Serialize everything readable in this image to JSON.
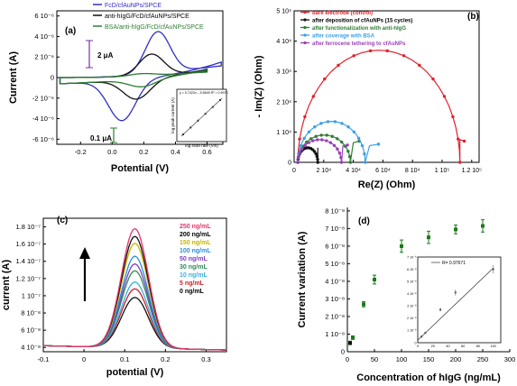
{
  "chart_data": [
    {
      "id": "a",
      "type": "line",
      "panel_label": "(a)",
      "xlabel": "Potential (V)",
      "ylabel": "Current (A)",
      "xlim": [
        -0.35,
        0.7
      ],
      "ylim": [
        -6.5e-06,
        6.5e-06
      ],
      "xticks": [
        -0.2,
        0,
        0.2,
        0.4,
        0.6
      ],
      "xtick_labels": [
        "-0.2",
        "0.0",
        "0.2",
        "0.4",
        "0.6"
      ],
      "yticks": [
        6e-06,
        4e-06,
        2e-06,
        0,
        -2e-06,
        -4e-06,
        -6e-06
      ],
      "ytick_labels": [
        "6 10⁻⁶",
        "4 10⁻⁶",
        "2 10⁻⁶",
        "0",
        "-2 10⁻⁶",
        "-4 10⁻⁶",
        "-6 10⁻⁶"
      ],
      "legend_position": "top-center",
      "series": [
        {
          "name": "FcD/cfAuNPs/SPCE",
          "color": "#2f2fc8",
          "anodic_peak": [
            0.29,
            4.7e-06
          ],
          "cathodic_peak": [
            0.06,
            -4.2e-06
          ],
          "start": [
            -0.33,
            0.0
          ],
          "end": [
            0.69,
            1.5e-06
          ]
        },
        {
          "name": "anti-hIgG/FcD/cfAuNPs/SPCE",
          "color": "#111111",
          "anodic_peak": [
            0.25,
            2.4e-06
          ],
          "cathodic_peak": [
            0.15,
            -2.1e-06
          ],
          "start": [
            -0.33,
            0.0
          ],
          "end": [
            0.6,
            8e-07
          ]
        },
        {
          "name": "BSA/anti-hIgG/FcD/cfAuNPs/SPCE",
          "color": "#2e7d32",
          "anodic_peak": [
            0.2,
            4e-07
          ],
          "cathodic_peak": [
            0.18,
            -9e-07
          ],
          "start": [
            -0.33,
            0.0
          ],
          "end": [
            0.6,
            7e-07
          ]
        }
      ],
      "annotations": [
        "2 μA",
        "0.1 μA"
      ],
      "inset": {
        "xlabel": "log scan rate (V/s)",
        "ylabel": "log peak current (A)",
        "equation": "y = 0.7422x – 5.5645 R² = 0.9970",
        "fit": "linear"
      }
    },
    {
      "id": "b",
      "type": "scatter",
      "panel_label": "(b)",
      "xlabel": "Re(Z) (Ohm)",
      "ylabel": "- Im(Z) (Ohm)",
      "xlim": [
        0,
        125000
      ],
      "ylim": [
        0,
        50000
      ],
      "xticks": [
        0,
        20000,
        40000,
        60000,
        80000,
        100000,
        120000
      ],
      "xtick_labels": [
        "0",
        "2 10⁴",
        "4 10⁴",
        "6 10⁴",
        "8 10⁴",
        "1 10⁵",
        "1.2 10⁵"
      ],
      "yticks": [
        0,
        10000,
        20000,
        30000,
        40000,
        50000
      ],
      "ytick_labels": [
        "0",
        "1 10⁴",
        "2 10⁴",
        "3 10⁴",
        "4 10⁴",
        "5 10⁴"
      ],
      "legend_position": "top",
      "series": [
        {
          "name": "bare electrode (control)",
          "color": "#e0202a",
          "arc_start": 2500,
          "arc_end": 112000,
          "peak": 37000,
          "tail": [
            [
              112000,
              7500
            ],
            [
              115000,
              7000
            ]
          ]
        },
        {
          "name": "after deposition of cfAuNPs (15 cycles)",
          "color": "#111111",
          "arc_start": 2500,
          "arc_end": 16000,
          "peak": 4800,
          "tail": [
            [
              16000,
              4800
            ]
          ]
        },
        {
          "name": "after functionalization with anti-hIgG",
          "color": "#2e7d32",
          "arc_start": 2500,
          "arc_end": 38000,
          "peak": 9000,
          "tail": [
            [
              40000,
              6500
            ],
            [
              44000,
              7000
            ]
          ]
        },
        {
          "name": "after coverage with BSA",
          "color": "#3aa0e8",
          "arc_start": 2500,
          "arc_end": 48000,
          "peak": 13500,
          "tail": [
            [
              51000,
              5500
            ],
            [
              57000,
              6000
            ]
          ]
        },
        {
          "name": "after ferrocene tethering to cfAuNPs",
          "color": "#9a3fb8",
          "arc_start": 2500,
          "arc_end": 32000,
          "peak": 7500,
          "tail": [
            [
              33000,
              5500
            ],
            [
              36000,
              5700
            ]
          ]
        }
      ]
    },
    {
      "id": "c",
      "type": "line",
      "panel_label": "(c)",
      "xlabel": "potential (V)",
      "ylabel": "current (A)",
      "xlim": [
        -0.1,
        0.35
      ],
      "ylim": [
        3.5e-08,
        1.9e-07
      ],
      "xticks": [
        -0.1,
        0,
        0.1,
        0.2,
        0.3
      ],
      "xtick_labels": [
        "-0.1",
        "0",
        "0.1",
        "0.2",
        "0.3"
      ],
      "yticks": [
        4e-08,
        6e-08,
        8e-08,
        1e-07,
        1.2e-07,
        1.4e-07,
        1.6e-07,
        1.8e-07
      ],
      "ytick_labels": [
        "4 10⁻⁸",
        "6 10⁻⁸",
        "8 10⁻⁸",
        "1 10⁻⁷",
        "1.2 10⁻⁷",
        "1.4 10⁻⁷",
        "1.6 10⁻⁷",
        "1.8 10⁻⁷"
      ],
      "peak_potential": 0.125,
      "peak_width": 0.047,
      "series": [
        {
          "name": "250 ng/mL",
          "color": "#e8336d",
          "peak_current": 1.78e-07,
          "baseline_left": 4.2e-08,
          "baseline_right": 3.7e-08
        },
        {
          "name": "200 ng/mL",
          "color": "#111111",
          "peak_current": 1.69e-07,
          "baseline_left": 4.2e-08,
          "baseline_right": 3.7e-08
        },
        {
          "name": "150 ng/mL",
          "color": "#c8b400",
          "peak_current": 1.61e-07,
          "baseline_left": 4.2e-08,
          "baseline_right": 3.7e-08
        },
        {
          "name": "100 ng/mL",
          "color": "#2a8fd8",
          "peak_current": 1.46e-07,
          "baseline_left": 4.2e-08,
          "baseline_right": 3.7e-08
        },
        {
          "name": "50 ng/mL",
          "color": "#7b3fc0",
          "peak_current": 1.37e-07,
          "baseline_left": 4.2e-08,
          "baseline_right": 3.7e-08
        },
        {
          "name": "30 ng/mL",
          "color": "#2e8b57",
          "peak_current": 1.29e-07,
          "baseline_left": 4.2e-08,
          "baseline_right": 3.7e-08
        },
        {
          "name": "10 ng/mL",
          "color": "#3ab0e0",
          "peak_current": 1.16e-07,
          "baseline_left": 4.2e-08,
          "baseline_right": 3.7e-08
        },
        {
          "name": "5 ng/mL",
          "color": "#d0202a",
          "peak_current": 1.08e-07,
          "baseline_left": 4.2e-08,
          "baseline_right": 3.7e-08
        },
        {
          "name": "0 ng/mL",
          "color": "#111111",
          "peak_current": 9.8e-08,
          "baseline_left": 4.2e-08,
          "baseline_right": 3.7e-08
        }
      ]
    },
    {
      "id": "d",
      "type": "scatter",
      "panel_label": "(d)",
      "xlabel": "Concentration of hIgG (ng/mL)",
      "ylabel": "Current variation (A)",
      "xlim": [
        0,
        300
      ],
      "ylim": [
        0,
        8.2e-08
      ],
      "xticks": [
        0,
        50,
        100,
        150,
        200,
        250,
        300
      ],
      "xtick_labels": [
        "0",
        "50",
        "100",
        "150",
        "200",
        "250",
        "300"
      ],
      "yticks": [
        0,
        1e-08,
        2e-08,
        3e-08,
        4e-08,
        5e-08,
        6e-08,
        7e-08,
        8e-08
      ],
      "ytick_labels": [
        "0",
        "1 10⁻⁸",
        "2 10⁻⁸",
        "3 10⁻⁸",
        "4 10⁻⁸",
        "5 10⁻⁸",
        "6 10⁻⁸",
        "7 10⁻⁸",
        "8 10⁻⁸"
      ],
      "marker_color": "#1a7a1a",
      "points": [
        {
          "x": 5,
          "y": 5e-09,
          "err": 1e-09
        },
        {
          "x": 10,
          "y": 8e-09,
          "err": 1e-09
        },
        {
          "x": 30,
          "y": 2.7e-08,
          "err": 1.5e-09
        },
        {
          "x": 50,
          "y": 4.1e-08,
          "err": 2.5e-09
        },
        {
          "x": 100,
          "y": 6e-08,
          "err": 3.5e-09
        },
        {
          "x": 150,
          "y": 6.5e-08,
          "err": 3.5e-09
        },
        {
          "x": 200,
          "y": 6.95e-08,
          "err": 2.5e-09
        },
        {
          "x": 250,
          "y": 7.15e-08,
          "err": 3.5e-09
        }
      ],
      "inset": {
        "xlim": [
          0,
          110
        ],
        "ylim": [
          0,
          7e-08
        ],
        "xticks": [
          0,
          20,
          40,
          60,
          80,
          100
        ],
        "xtick_labels": [
          "0",
          "20",
          "40",
          "60",
          "80",
          "100"
        ],
        "yticks": [
          0,
          1e-08,
          2e-08,
          3e-08,
          4e-08,
          5e-08,
          6e-08,
          7e-08
        ],
        "ytick_labels": [
          "0",
          "1 10⁻⁸",
          "2 10⁻⁸",
          "3 10⁻⁸",
          "4 10⁻⁸",
          "5 10⁻⁸",
          "6 10⁻⁸",
          "7 10⁻⁸"
        ],
        "legend": "R= 0.97671",
        "fit_line": [
          [
            0,
            2e-09
          ],
          [
            100,
            6.1e-08
          ]
        ],
        "points": [
          {
            "x": 5,
            "y": 5e-09,
            "err": 1e-09
          },
          {
            "x": 10,
            "y": 8e-09,
            "err": 1e-09
          },
          {
            "x": 30,
            "y": 2.7e-08,
            "err": 1.5e-09
          },
          {
            "x": 50,
            "y": 4.1e-08,
            "err": 2.5e-09
          },
          {
            "x": 100,
            "y": 6e-08,
            "err": 3.5e-09
          }
        ]
      }
    }
  ]
}
